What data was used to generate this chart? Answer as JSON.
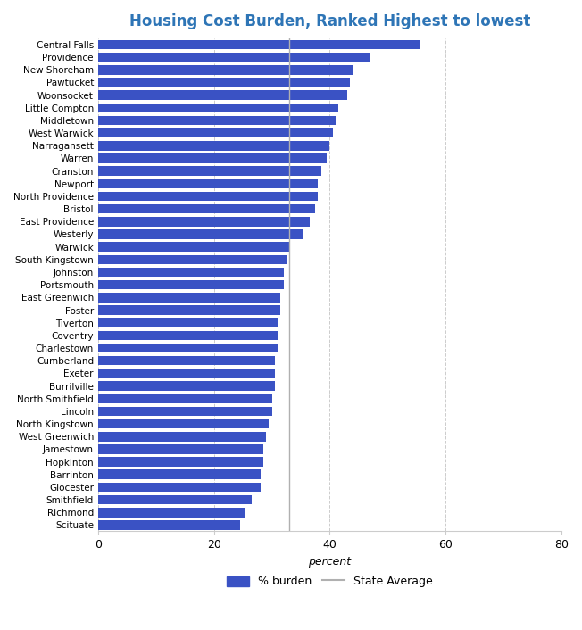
{
  "title": "Housing Cost Burden, Ranked Highest to lowest",
  "xlabel": "percent",
  "categories": [
    "Central Falls",
    "Providence",
    "New Shoreham",
    "Pawtucket",
    "Woonsocket",
    "Little Compton",
    "Middletown",
    "West Warwick",
    "Narragansett",
    "Warren",
    "Cranston",
    "Newport",
    "North Providence",
    "Bristol",
    "East Providence",
    "Westerly",
    "Warwick",
    "South Kingstown",
    "Johnston",
    "Portsmouth",
    "East Greenwich",
    "Foster",
    "Tiverton",
    "Coventry",
    "Charlestown",
    "Cumberland",
    "Exeter",
    "Burrilville",
    "North Smithfield",
    "Lincoln",
    "North Kingstown",
    "West Greenwich",
    "Jamestown",
    "Hopkinton",
    "Barrinton",
    "Glocester",
    "Smithfield",
    "Richmond",
    "Scituate"
  ],
  "values": [
    55.5,
    47.0,
    44.0,
    43.5,
    43.0,
    41.5,
    41.0,
    40.5,
    40.0,
    39.5,
    38.5,
    38.0,
    38.0,
    37.5,
    36.5,
    35.5,
    33.0,
    32.5,
    32.0,
    32.0,
    31.5,
    31.5,
    31.0,
    31.0,
    31.0,
    30.5,
    30.5,
    30.5,
    30.0,
    30.0,
    29.5,
    29.0,
    28.5,
    28.5,
    28.0,
    28.0,
    26.5,
    25.5,
    24.5
  ],
  "bar_color": "#3a52c4",
  "state_average": 33.0,
  "state_avg_color": "#b0b0b0",
  "xlim": [
    0,
    80
  ],
  "xticks": [
    0,
    20,
    40,
    60,
    80
  ],
  "title_color": "#2e75b6",
  "title_fontsize": 12,
  "bar_height": 0.75,
  "background_color": "#ffffff",
  "grid_color": "#cccccc",
  "label_fontsize": 7.5,
  "legend_bar_label": "% burden",
  "legend_line_label": "State Average"
}
